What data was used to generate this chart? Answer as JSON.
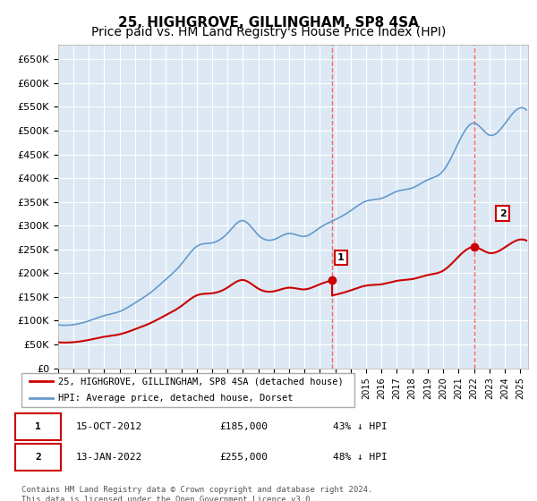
{
  "title": "25, HIGHGROVE, GILLINGHAM, SP8 4SA",
  "subtitle": "Price paid vs. HM Land Registry's House Price Index (HPI)",
  "ylabel_ticks": [
    "£0",
    "£50K",
    "£100K",
    "£150K",
    "£200K",
    "£250K",
    "£300K",
    "£350K",
    "£400K",
    "£450K",
    "£500K",
    "£550K",
    "£600K",
    "£650K"
  ],
  "ytick_values": [
    0,
    50000,
    100000,
    150000,
    200000,
    250000,
    300000,
    350000,
    400000,
    450000,
    500000,
    550000,
    600000,
    650000
  ],
  "ylim": [
    0,
    680000
  ],
  "xlim_start": 1995.0,
  "xlim_end": 2025.5,
  "background_color": "#dce9f5",
  "grid_color": "#ffffff",
  "sale1_x": 2012.79,
  "sale1_y": 185000,
  "sale2_x": 2022.04,
  "sale2_y": 255000,
  "vline1_x": 2012.79,
  "vline2_x": 2022.04,
  "vline_color": "#ff6666",
  "hpi_color": "#6699cc",
  "price_color": "#cc0000",
  "legend_label1": "25, HIGHGROVE, GILLINGHAM, SP8 4SA (detached house)",
  "legend_label2": "HPI: Average price, detached house, Dorset",
  "annotation1_label": "1",
  "annotation2_label": "2",
  "table_row1": [
    "1",
    "15-OCT-2012",
    "£185,000",
    "43% ↓ HPI"
  ],
  "table_row2": [
    "2",
    "13-JAN-2022",
    "£255,000",
    "48% ↓ HPI"
  ],
  "footer": "Contains HM Land Registry data © Crown copyright and database right 2024.\nThis data is licensed under the Open Government Licence v3.0.",
  "title_fontsize": 11,
  "subtitle_fontsize": 10,
  "hpi_years": [
    1995,
    1996,
    1997,
    1998,
    1999,
    2000,
    2001,
    2002,
    2003,
    2004,
    2005,
    2006,
    2007,
    2008,
    2009,
    2010,
    2011,
    2012,
    2013,
    2014,
    2015,
    2016,
    2017,
    2018,
    2019,
    2020,
    2021,
    2022,
    2023,
    2024,
    2025.4
  ],
  "hpi_values": [
    90000,
    92000,
    98000,
    107000,
    120000,
    138000,
    155000,
    185000,
    220000,
    255000,
    265000,
    285000,
    310000,
    285000,
    275000,
    285000,
    280000,
    295000,
    315000,
    335000,
    348000,
    358000,
    372000,
    383000,
    398000,
    415000,
    478000,
    515000,
    492000,
    515000,
    545000
  ]
}
